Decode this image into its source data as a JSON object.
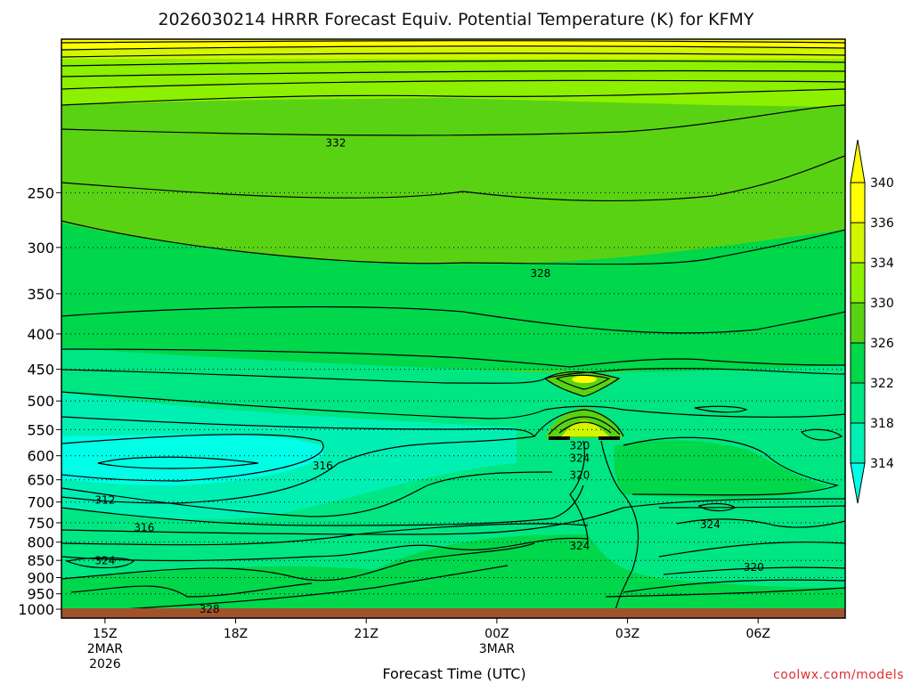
{
  "chart_data": {
    "type": "heatmap",
    "title": "2026030214 HRRR Forecast Equiv. Potential Temperature (K) for KFMY",
    "xlabel": "Forecast Time (UTC)",
    "ylabel": "",
    "x_ticks": [
      {
        "label": "15Z",
        "sub1": "2MAR",
        "sub2": "2026",
        "hour": 0
      },
      {
        "label": "18Z",
        "sub1": "",
        "sub2": "",
        "hour": 3
      },
      {
        "label": "21Z",
        "sub1": "",
        "sub2": "",
        "hour": 6
      },
      {
        "label": "00Z",
        "sub1": "3MAR",
        "sub2": "",
        "hour": 9
      },
      {
        "label": "03Z",
        "sub1": "",
        "sub2": "",
        "hour": 12
      },
      {
        "label": "06Z",
        "sub1": "",
        "sub2": "",
        "hour": 15
      }
    ],
    "xlim_hours": [
      -1,
      17
    ],
    "y_ticks": [
      250,
      300,
      350,
      400,
      450,
      500,
      550,
      600,
      650,
      700,
      750,
      800,
      850,
      900,
      950,
      1000
    ],
    "ylim": [
      1030,
      150
    ],
    "y_scale": "log-pressure",
    "colorbar": {
      "labels": [
        314,
        318,
        322,
        326,
        330,
        334,
        336,
        340
      ],
      "colors": [
        "#00ffe6",
        "#00f0b4",
        "#00e682",
        "#00d74b",
        "#5ad214",
        "#8cf000",
        "#d2f500",
        "#ffff00",
        "#ffff00"
      ]
    },
    "contour_labels": [
      {
        "text": "332",
        "hour": 5.3,
        "p": 212
      },
      {
        "text": "328",
        "hour": 10.0,
        "p": 327
      },
      {
        "text": "316",
        "hour": 5.0,
        "p": 620
      },
      {
        "text": "312",
        "hour": 0.0,
        "p": 695
      },
      {
        "text": "316",
        "hour": 0.9,
        "p": 762
      },
      {
        "text": "324",
        "hour": 0.0,
        "p": 851
      },
      {
        "text": "328",
        "hour": 2.4,
        "p": 1000
      },
      {
        "text": "320",
        "hour": 10.9,
        "p": 580
      },
      {
        "text": "324",
        "hour": 10.9,
        "p": 605
      },
      {
        "text": "320",
        "hour": 10.9,
        "p": 640
      },
      {
        "text": "324",
        "hour": 10.9,
        "p": 810
      },
      {
        "text": "324",
        "hour": 13.9,
        "p": 755
      },
      {
        "text": "320",
        "hour": 14.9,
        "p": 870
      }
    ],
    "grid": true,
    "legend": "right"
  },
  "footer": "coolwx.com/models"
}
